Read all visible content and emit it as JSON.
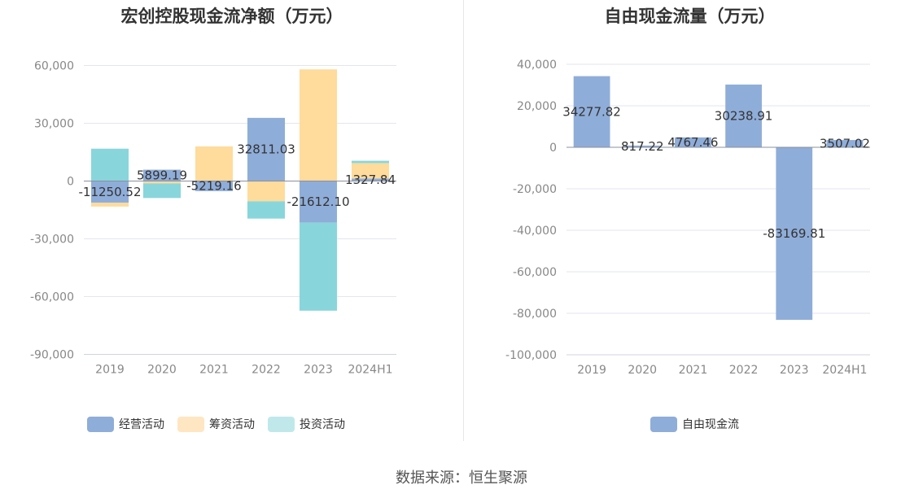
{
  "source": "数据来源：恒生聚源",
  "chart_data": [
    {
      "type": "bar",
      "stacked": true,
      "title": "宏创控股现金流净额（万元）",
      "categories": [
        "2019",
        "2020",
        "2021",
        "2022",
        "2023",
        "2024H1"
      ],
      "ylim": [
        -90000,
        60000
      ],
      "yticks": [
        60000,
        30000,
        0,
        -30000,
        -60000,
        -90000
      ],
      "ytick_labels": [
        "60,000",
        "30,000",
        "0",
        "-30,000",
        "-60,000",
        "-90,000"
      ],
      "series": [
        {
          "name": "经营活动",
          "color": "#8fadd9",
          "values": [
            -11250.52,
            5899.19,
            -5219.16,
            32811.03,
            -21612.1,
            1327.84
          ]
        },
        {
          "name": "筹资活动",
          "color": "#ffdb9c",
          "values": [
            -2000,
            -1200,
            18000,
            -10500,
            58000,
            8000
          ]
        },
        {
          "name": "投资活动",
          "color": "#88d6db",
          "values": [
            16800,
            -7600,
            0,
            -9000,
            -45700,
            1200
          ]
        }
      ],
      "data_labels": [
        "-11250.52",
        "5899.19",
        "-5219.16",
        "32811.03",
        "-21612.10",
        "1327.84"
      ],
      "legend": [
        "经营活动",
        "筹资活动",
        "投资活动"
      ],
      "legend_colors": [
        "#8fadd9",
        "#ffe6c2",
        "#c0e8ea"
      ]
    },
    {
      "type": "bar",
      "title": "自由现金流量（万元）",
      "categories": [
        "2019",
        "2020",
        "2021",
        "2022",
        "2023",
        "2024H1"
      ],
      "ylim": [
        -100000,
        40000
      ],
      "yticks": [
        40000,
        20000,
        0,
        -20000,
        -40000,
        -60000,
        -80000,
        -100000
      ],
      "ytick_labels": [
        "40,000",
        "20,000",
        "0",
        "-20,000",
        "-40,000",
        "-60,000",
        "-80,000",
        "-100,000"
      ],
      "series": [
        {
          "name": "自由现金流",
          "color": "#8fadd9",
          "values": [
            34277.82,
            817.22,
            4767.46,
            30238.91,
            -83169.81,
            3507.02
          ]
        }
      ],
      "data_labels": [
        "34277.82",
        "817.22",
        "4767.46",
        "30238.91",
        "-83169.81",
        "3507.02"
      ],
      "legend": [
        "自由现金流"
      ],
      "legend_colors": [
        "#8fadd9"
      ]
    }
  ]
}
